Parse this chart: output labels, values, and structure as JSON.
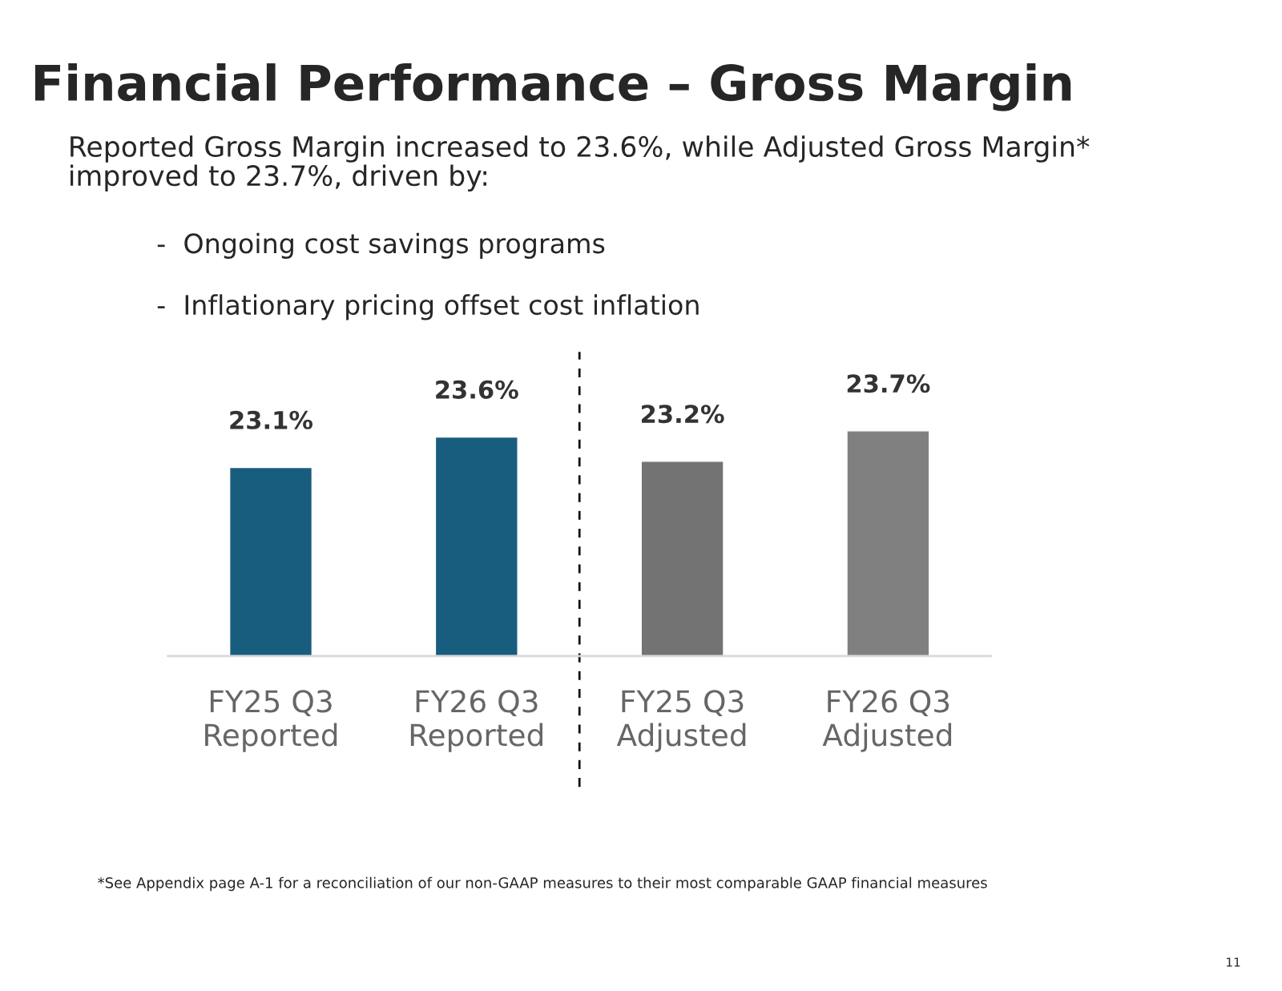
{
  "chart_data": {
    "type": "bar",
    "title": "Financial Performance – Gross Margin",
    "subtitle": "Reported Gross Margin increased to 23.6%, while Adjusted Gross Margin*\nimproved to 23.7%, driven by:",
    "annotations": [
      "-  Ongoing cost savings programs",
      "-  Inflationary pricing offset cost inflation",
      "*See Appendix page A-1 for a reconciliation of our non-GAAP measures to their most comparable GAAP financial measures",
      "11"
    ],
    "categories": [
      "FY25 Q3\nReported",
      "FY26 Q3\nReported",
      "FY25 Q3\nAdjusted",
      "FY26 Q3\nAdjusted"
    ],
    "values": [
      23.1,
      23.6,
      23.2,
      23.7
    ],
    "value_labels": [
      "23.1%",
      "23.6%",
      "23.2%",
      "23.7%"
    ],
    "colors": [
      "#185d7e",
      "#185d7e",
      "#737373",
      "#808080"
    ],
    "ylim": [
      20,
      25
    ],
    "tick_labels": "x"
  }
}
